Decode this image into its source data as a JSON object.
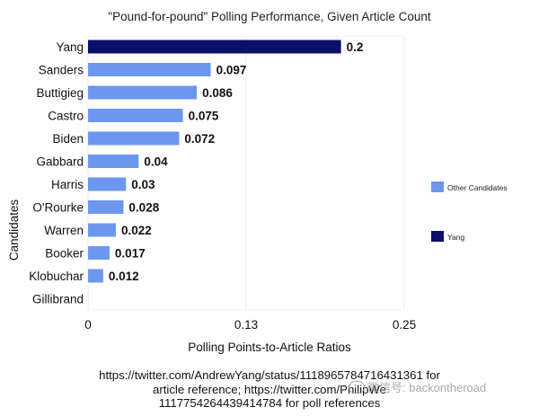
{
  "chart_data": {
    "type": "bar",
    "orientation": "horizontal",
    "title": "\"Pound-for-pound\" Polling Performance, Given Article Count",
    "xlabel": "Polling Points-to-Article Ratios",
    "ylabel": "Candidates",
    "categories": [
      "Yang",
      "Sanders",
      "Buttigieg",
      "Castro",
      "Biden",
      "Gabbard",
      "Harris",
      "O'Rourke",
      "Warren",
      "Booker",
      "Klobuchar",
      "Gillibrand"
    ],
    "values": [
      0.2,
      0.097,
      0.086,
      0.075,
      0.072,
      0.04,
      0.03,
      0.028,
      0.022,
      0.017,
      0.012,
      0
    ],
    "value_labels": [
      "0.2",
      "0.097",
      "0.086",
      "0.075",
      "0.072",
      "0.04",
      "0.03",
      "0.028",
      "0.022",
      "0.017",
      "0.012",
      ""
    ],
    "groups": [
      "Yang",
      "Other Candidates",
      "Other Candidates",
      "Other Candidates",
      "Other Candidates",
      "Other Candidates",
      "Other Candidates",
      "Other Candidates",
      "Other Candidates",
      "Other Candidates",
      "Other Candidates",
      "Other Candidates"
    ],
    "xlim": [
      0,
      0.25
    ],
    "xticks": [
      0,
      0.125,
      0.25
    ],
    "xtick_labels": [
      "0",
      "0.13",
      "0.25"
    ],
    "grid": true,
    "legend": {
      "position": "right",
      "entries": [
        {
          "name": "Other Candidates",
          "color": "#6d96ee"
        },
        {
          "name": "Yang",
          "color": "#0c0f6b"
        }
      ]
    },
    "colors": {
      "Yang": "#0c0f6b",
      "Other Candidates": "#6d96ee"
    }
  },
  "source_note": {
    "line1": "https://twitter.com/AndrewYang/status/1118965784716431361 for",
    "line2": "article reference; https://twitter.com/PhilipWe",
    "line3": "1117754264439414784 for poll references"
  },
  "watermark": {
    "text": "微信号: backontheroad"
  }
}
